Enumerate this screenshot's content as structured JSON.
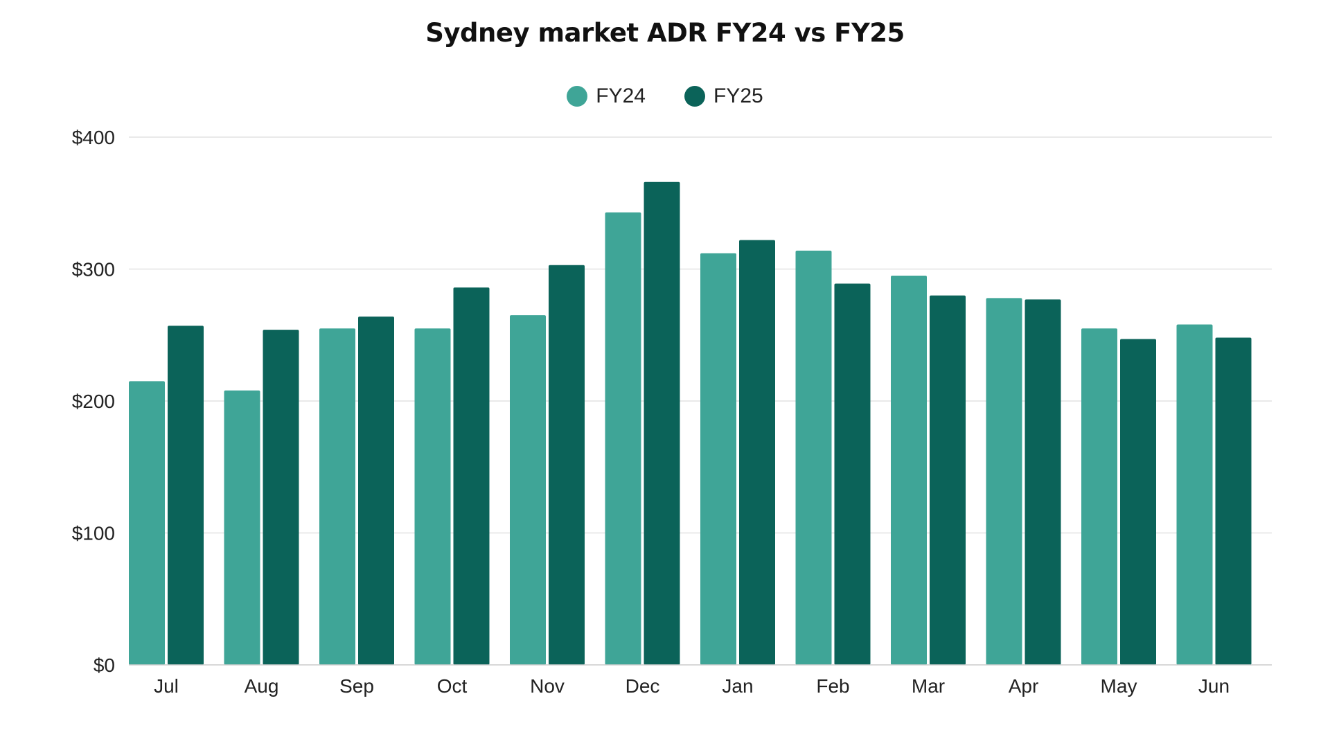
{
  "chart_data": {
    "type": "bar",
    "title": "Sydney market ADR FY24 vs FY25",
    "xlabel": "",
    "ylabel": "",
    "categories": [
      "Jul",
      "Aug",
      "Sep",
      "Oct",
      "Nov",
      "Dec",
      "Jan",
      "Feb",
      "Mar",
      "Apr",
      "May",
      "Jun"
    ],
    "series": [
      {
        "name": "FY24",
        "color": "#3fa597",
        "values": [
          215,
          208,
          255,
          255,
          265,
          343,
          312,
          314,
          295,
          278,
          255,
          258
        ]
      },
      {
        "name": "FY25",
        "color": "#0b6359",
        "values": [
          257,
          254,
          264,
          286,
          303,
          366,
          322,
          289,
          280,
          277,
          247,
          248
        ]
      }
    ],
    "ylim": [
      0,
      400
    ],
    "yticks": [
      0,
      100,
      200,
      300,
      400
    ],
    "ytick_labels": [
      "$0",
      "$100",
      "$200",
      "$300",
      "$400"
    ],
    "grid": true,
    "legend_position": "top-center"
  }
}
